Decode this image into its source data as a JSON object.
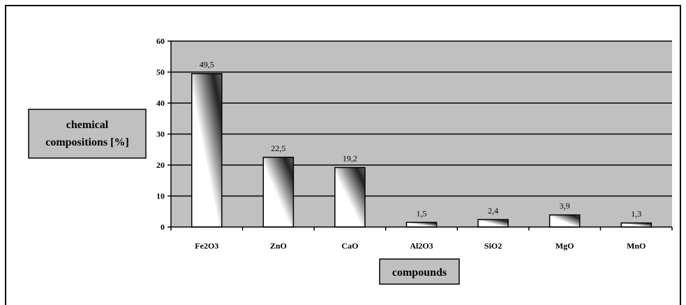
{
  "chart_data": {
    "type": "bar",
    "categories": [
      "Fe2O3",
      "ZnO",
      "CaO",
      "Al2O3",
      "SiO2",
      "MgO",
      "MnO"
    ],
    "values": [
      49.5,
      22.5,
      19.2,
      1.5,
      2.4,
      3.9,
      1.3
    ],
    "data_labels": [
      "49,5",
      "22,5",
      "19,2",
      "1,5",
      "2,4",
      "3,9",
      "1,3"
    ],
    "ylabel_lines": [
      "chemical",
      "compositions [%]"
    ],
    "xlabel": "compounds",
    "ylim": [
      0,
      60
    ],
    "yticks": [
      "0",
      "10",
      "20",
      "30",
      "40",
      "50",
      "60"
    ],
    "grid": true,
    "colors": {
      "plot_bg": "#c0c0c0",
      "bar_light": "#ffffff",
      "bar_dark": "#222222",
      "grid": "#000000",
      "title_box": "#c0c0c0"
    }
  }
}
